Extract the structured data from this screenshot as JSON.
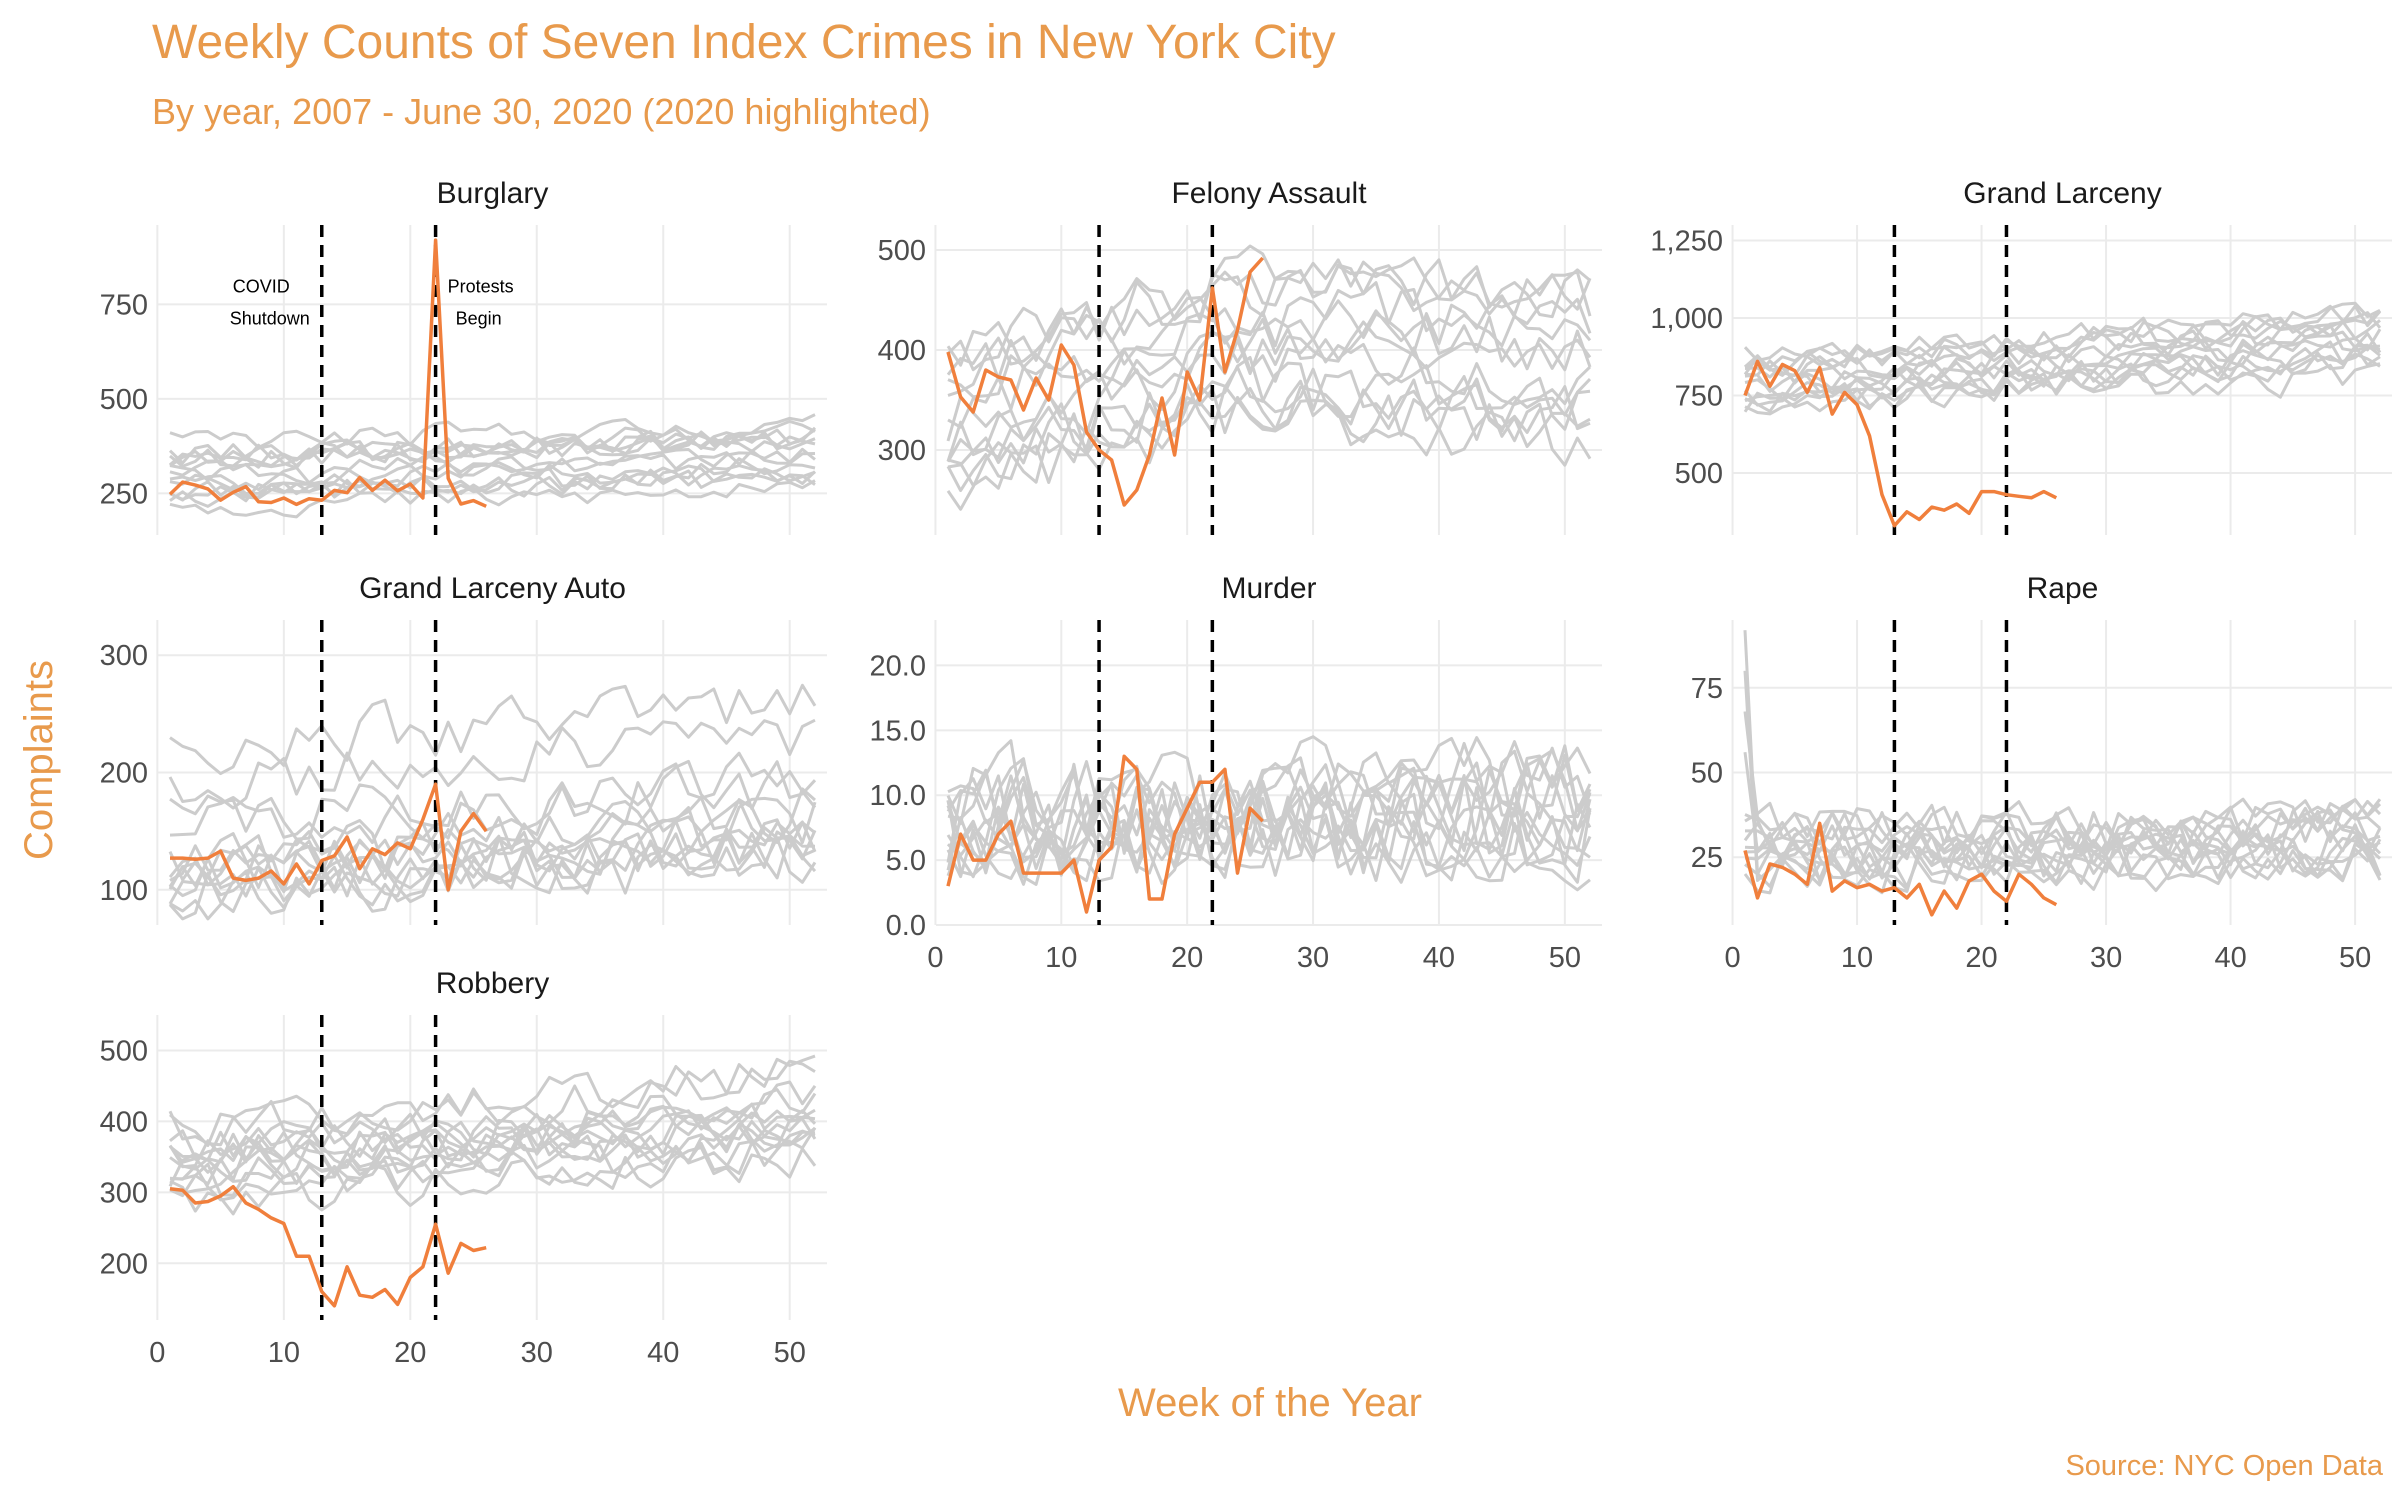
{
  "chart_data": {
    "type": "line",
    "title": "Weekly Counts of Seven Index Crimes in New York City",
    "subtitle": "By year, 2007 - June 30, 2020 (2020 highlighted)",
    "xlabel": "Week of the Year",
    "ylabel": "Complaints",
    "caption": "Source: NYC Open Data",
    "xlim": [
      1,
      52
    ],
    "x_ticks": [
      0,
      10,
      20,
      30,
      40,
      50
    ],
    "reference_lines": [
      {
        "x": 13,
        "label": [
          "COVID",
          "Shutdown"
        ]
      },
      {
        "x": 22,
        "label": [
          "Protests",
          "Begin"
        ]
      }
    ],
    "colors": {
      "highlight": "#f07f3c",
      "background_series": "#cccccc",
      "text_accent": "#e89a4c",
      "reference_line": "#000000",
      "grid": "#ebebeb"
    },
    "highlight_series": "2020",
    "panels": [
      {
        "name": "Burglary",
        "ylim": [
          140,
          960
        ],
        "y_ticks": [
          250,
          500,
          750
        ],
        "highlight": [
          248,
          280,
          272,
          262,
          232,
          253,
          268,
          228,
          226,
          238,
          221,
          236,
          232,
          258,
          252,
          292,
          258,
          285,
          257,
          275,
          238,
          920,
          290,
          222,
          231,
          216
        ],
        "background": {
          "base": 305,
          "spread": 90,
          "trend": 50,
          "noise": 28,
          "count": 13,
          "seed": 11
        }
      },
      {
        "name": "Felony Assault",
        "ylim": [
          215,
          525
        ],
        "y_ticks": [
          300,
          400,
          500
        ],
        "highlight": [
          398,
          353,
          338,
          380,
          373,
          370,
          340,
          372,
          350,
          405,
          385,
          318,
          300,
          290,
          245,
          260,
          295,
          352,
          295,
          378,
          350,
          462,
          378,
          420,
          478,
          492
        ],
        "background": {
          "base": 320,
          "spread": 80,
          "trend": 80,
          "noise": 28,
          "count": 13,
          "seed": 23,
          "shape": "hump"
        }
      },
      {
        "name": "Grand Larceny",
        "ylim": [
          300,
          1300
        ],
        "y_ticks": [
          500,
          750,
          1000,
          1250
        ],
        "highlight": [
          750,
          860,
          780,
          850,
          830,
          760,
          840,
          690,
          760,
          720,
          620,
          430,
          330,
          375,
          350,
          390,
          380,
          400,
          370,
          440,
          440,
          430,
          425,
          420,
          440,
          420
        ],
        "background": {
          "base": 790,
          "spread": 90,
          "trend": 120,
          "noise": 45,
          "count": 13,
          "seed": 37
        }
      },
      {
        "name": "Grand Larceny Auto",
        "ylim": [
          70,
          330
        ],
        "y_ticks": [
          100,
          200,
          300
        ],
        "highlight": [
          127,
          127,
          126,
          127,
          133,
          110,
          108,
          110,
          116,
          105,
          122,
          105,
          125,
          129,
          145,
          118,
          135,
          130,
          140,
          135,
          160,
          190,
          100,
          150,
          165,
          150
        ],
        "background": {
          "base": 150,
          "spread": 70,
          "trend": 40,
          "noise": 22,
          "count": 13,
          "seed": 41
        }
      },
      {
        "name": "Murder",
        "ylim": [
          0,
          23.5
        ],
        "y_ticks": [
          0.0,
          5.0,
          10.0,
          15.0,
          20.0
        ],
        "highlight": [
          3,
          7,
          5,
          5,
          7,
          8,
          4,
          4,
          4,
          4,
          5,
          1,
          5,
          6,
          13,
          12,
          2,
          2,
          7,
          9,
          11,
          11,
          12,
          4,
          9,
          8
        ],
        "background": {
          "base": 7.5,
          "spread": 2,
          "trend": 1.5,
          "noise": 3.5,
          "count": 13,
          "seed": 53
        }
      },
      {
        "name": "Rape",
        "ylim": [
          5,
          95
        ],
        "y_ticks": [
          25,
          50,
          75
        ],
        "highlight": [
          27,
          13,
          23,
          22,
          20,
          17,
          35,
          15,
          18,
          16,
          17,
          15,
          16,
          13,
          17,
          8,
          15,
          10,
          18,
          20,
          15,
          12,
          20,
          17,
          13,
          11
        ],
        "background": {
          "base": 27,
          "spread": 6,
          "trend": 3,
          "noise": 7,
          "count": 13,
          "seed": 67,
          "spike": 92
        }
      },
      {
        "name": "Robbery",
        "ylim": [
          120,
          550
        ],
        "y_ticks": [
          200,
          300,
          400,
          500
        ],
        "highlight": [
          305,
          303,
          285,
          287,
          295,
          308,
          285,
          276,
          264,
          256,
          210,
          210,
          160,
          140,
          195,
          155,
          152,
          163,
          142,
          180,
          195,
          255,
          186,
          228,
          218,
          222
        ],
        "background": {
          "base": 330,
          "spread": 80,
          "trend": 60,
          "noise": 28,
          "count": 13,
          "seed": 79
        }
      }
    ]
  }
}
